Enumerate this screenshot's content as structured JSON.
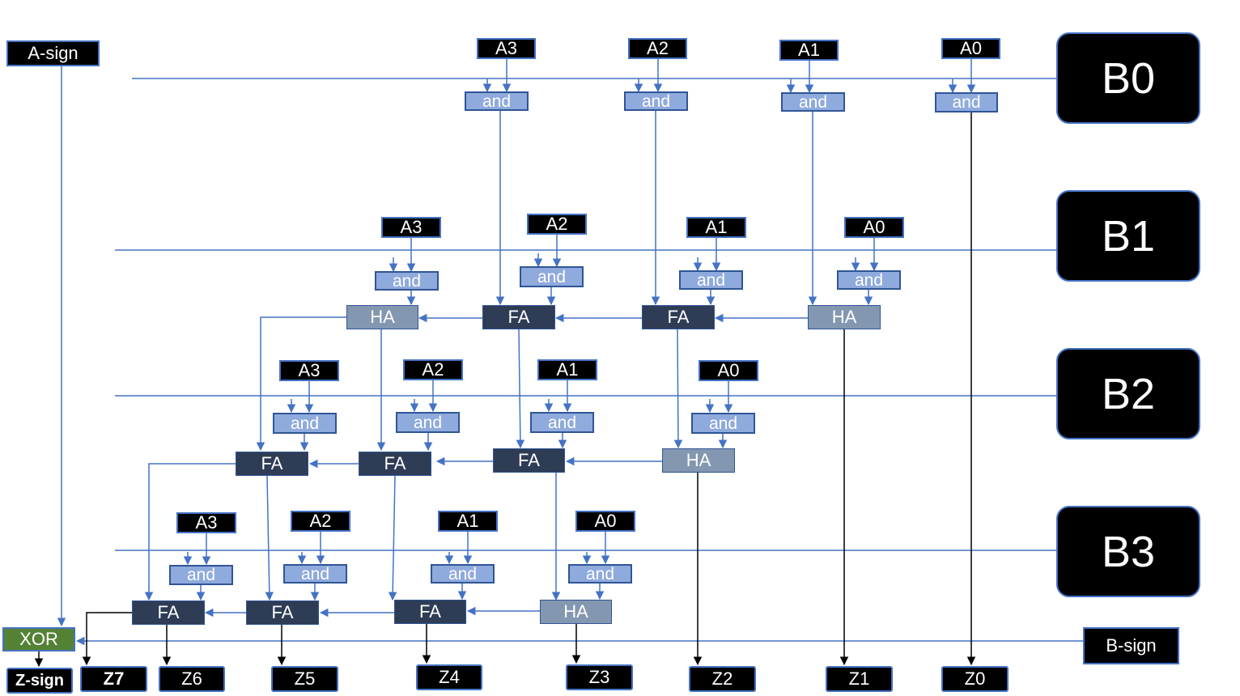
{
  "a_sign": "A-sign",
  "b_sign": "B-sign",
  "xor": "XOR",
  "z_sign": "Z-sign",
  "b_rows": [
    "B0",
    "B1",
    "B2",
    "B3"
  ],
  "row0": {
    "inputs": [
      "A3",
      "A2",
      "A1",
      "A0"
    ],
    "gates": [
      "and",
      "and",
      "and",
      "and"
    ]
  },
  "row1": {
    "inputs": [
      "A3",
      "A2",
      "A1",
      "A0"
    ],
    "gates": [
      "and",
      "and",
      "and",
      "and"
    ],
    "adders": [
      "HA",
      "FA",
      "FA",
      "HA"
    ]
  },
  "row2": {
    "inputs": [
      "A3",
      "A2",
      "A1",
      "A0"
    ],
    "gates": [
      "and",
      "and",
      "and",
      "and"
    ],
    "adders": [
      "FA",
      "FA",
      "FA",
      "HA"
    ]
  },
  "row3": {
    "inputs": [
      "A3",
      "A2",
      "A1",
      "A0"
    ],
    "gates": [
      "and",
      "and",
      "and",
      "and"
    ],
    "adders": [
      "FA",
      "FA",
      "FA",
      "HA"
    ]
  },
  "outputs": [
    "Z7",
    "Z6",
    "Z5",
    "Z4",
    "Z3",
    "Z2",
    "Z1",
    "Z0"
  ],
  "colors": {
    "wire_blue": "#4472c4",
    "wire_black": "#000000",
    "and_fill": "#8faadc",
    "fa_fill": "#2e3c55",
    "ha_fill": "#8497b0",
    "xor_fill": "#548235"
  }
}
